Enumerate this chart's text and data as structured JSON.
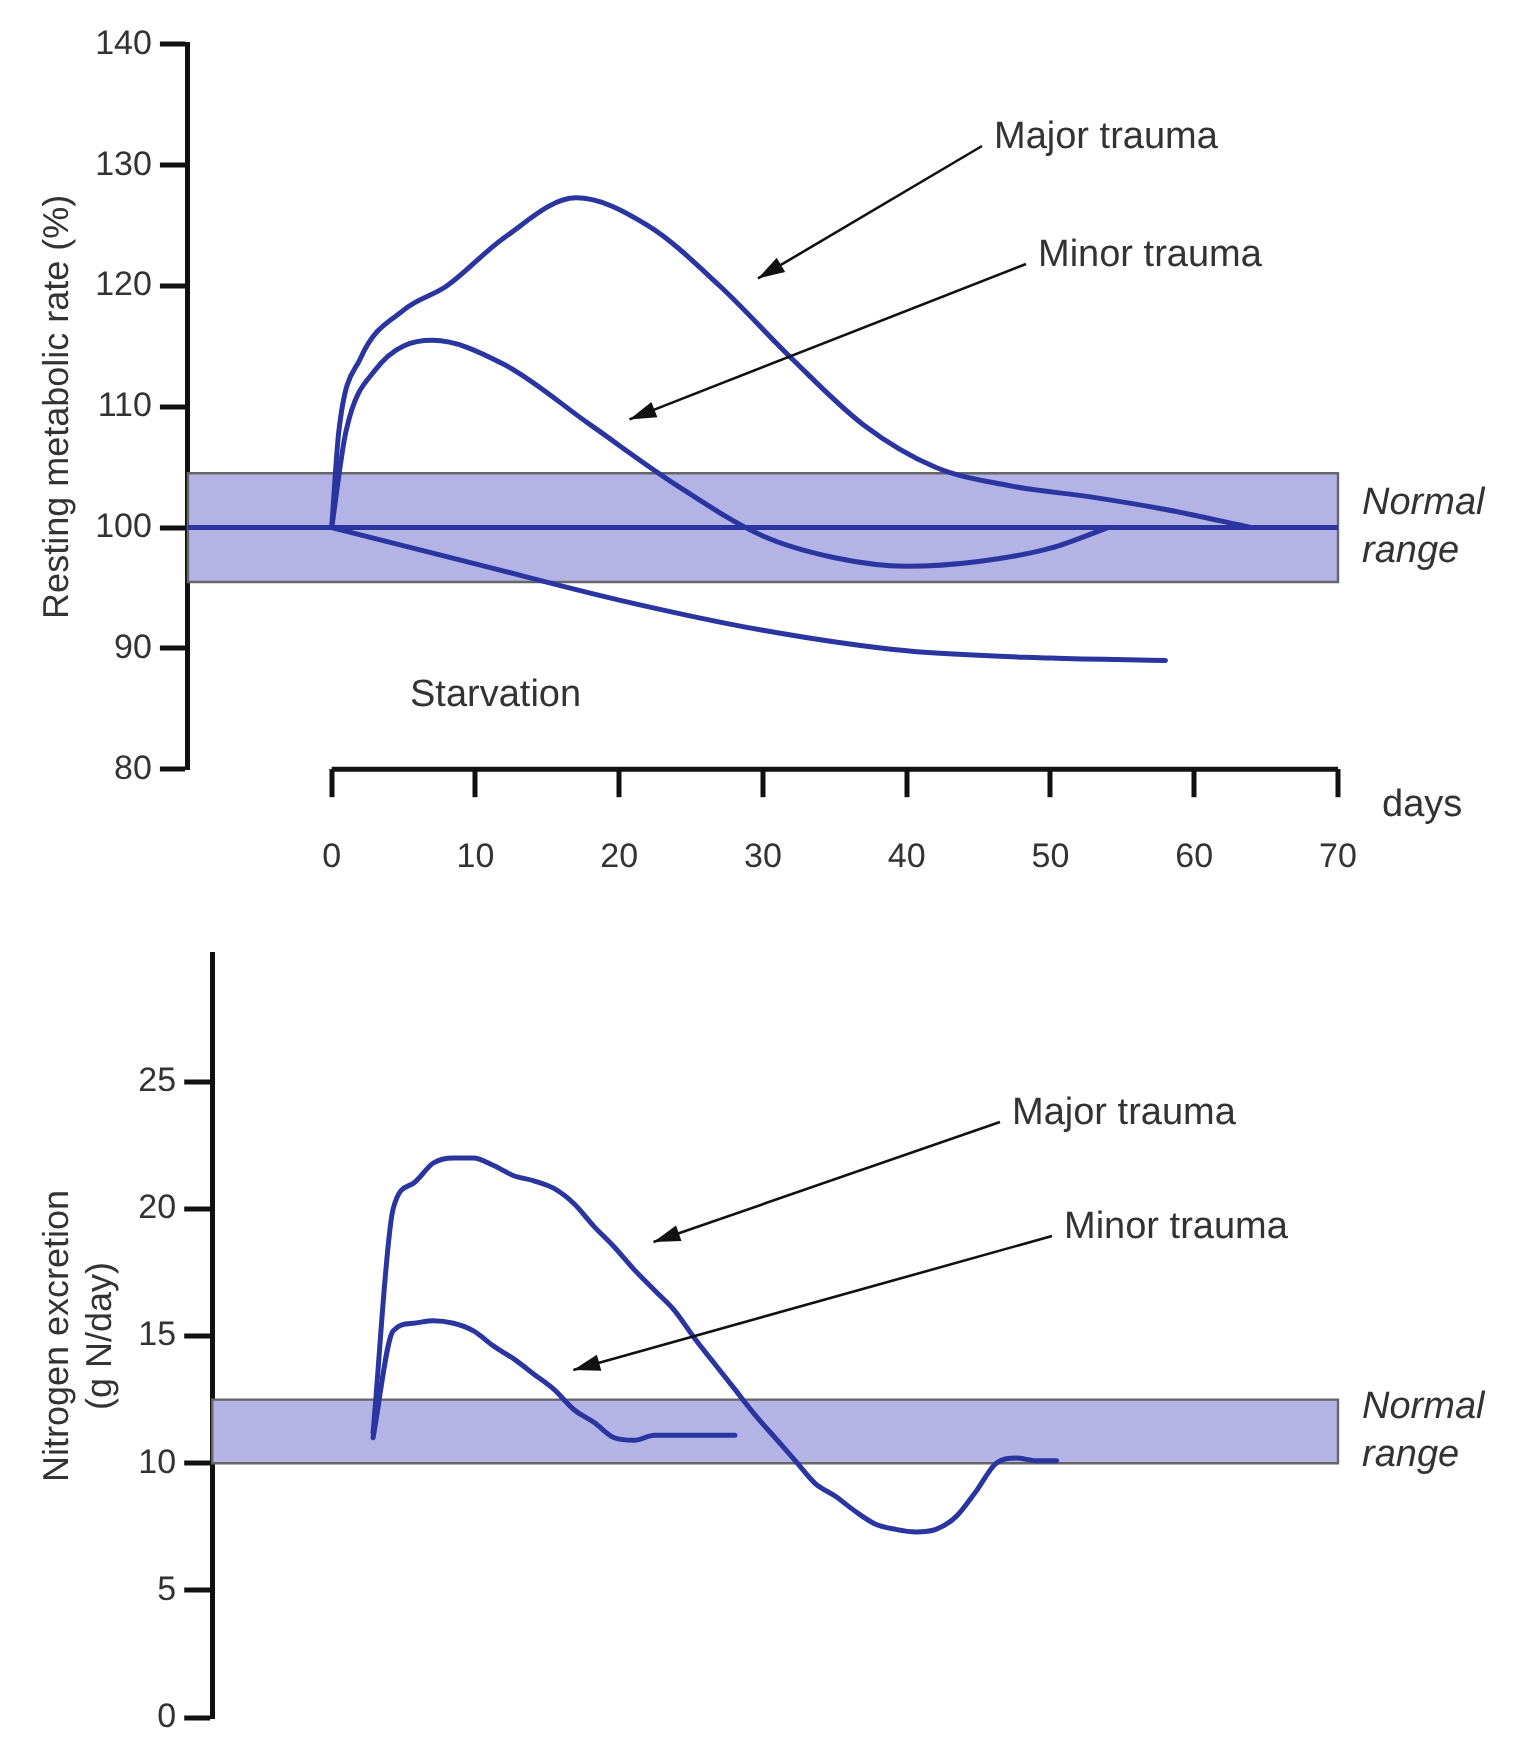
{
  "chart_data": [
    {
      "type": "line",
      "ylabel": "Resting metabolic rate (%)",
      "xlabel": "days",
      "xlim": [
        -10,
        70
      ],
      "xticks": [
        0,
        10,
        20,
        30,
        40,
        50,
        60,
        70
      ],
      "ylim": [
        80,
        140
      ],
      "yticks": [
        80,
        90,
        100,
        110,
        120,
        130,
        140
      ],
      "grid": false,
      "legend": false,
      "marker": "none",
      "line_style": "solid",
      "series": [
        {
          "name": "Major trauma",
          "color": "#2b35a0",
          "x": [
            0,
            0.5,
            2,
            5,
            8,
            12,
            17,
            22,
            27,
            32,
            37,
            42,
            47,
            53,
            58,
            64
          ],
          "values": [
            100,
            108,
            114,
            118,
            120,
            124,
            127.3,
            125,
            120,
            114,
            108.5,
            105,
            103.5,
            102.5,
            101.5,
            100
          ]
        },
        {
          "name": "Minor trauma",
          "color": "#2b35a0",
          "x": [
            0,
            1,
            3,
            7,
            12,
            18,
            24,
            30,
            35,
            40,
            45,
            50,
            54
          ],
          "values": [
            100,
            108,
            113,
            115.5,
            113.5,
            108.5,
            103.5,
            99.3,
            97.5,
            96.8,
            97.2,
            98.3,
            100
          ]
        },
        {
          "name": "Starvation",
          "color": "#2b35a0",
          "x": [
            0,
            10,
            20,
            30,
            40,
            50,
            58
          ],
          "values": [
            100,
            97,
            94,
            91.5,
            89.8,
            89.2,
            89
          ]
        }
      ],
      "ref_lines": [
        {
          "axis": "y",
          "value": 100,
          "color": "#2b35a0"
        }
      ],
      "bands": [
        {
          "axis": "y",
          "from": 95.5,
          "to": 104.5,
          "label": "Normal range",
          "color": "#b3b3e6"
        }
      ]
    },
    {
      "type": "line",
      "ylabel": "Nitrogen excretion\n(g N/day)",
      "categories": [
        null,
        null,
        null,
        null,
        null,
        null,
        null,
        null,
        null,
        null,
        null,
        null,
        null,
        null,
        null,
        null,
        null,
        null,
        null,
        null,
        null,
        null,
        null,
        null,
        null,
        null,
        null,
        null,
        null,
        null,
        null,
        null,
        null,
        null,
        null,
        null,
        null,
        null,
        null,
        null,
        null,
        null,
        null,
        null,
        null,
        null,
        null,
        null,
        null,
        null,
        null,
        null,
        null,
        null,
        null,
        null,
        null
      ],
      "ylim": [
        0,
        30
      ],
      "yticks": [
        0,
        5,
        10,
        15,
        20,
        25
      ],
      "tick_labels": "y",
      "grid": false,
      "legend": false,
      "marker": "none",
      "line_style": "solid",
      "series": [
        {
          "name": "Major trauma",
          "color": "#2b35a0",
          "values": [
            null,
            null,
            null,
            null,
            null,
            null,
            null,
            null,
            11.2,
            20,
            21,
            21.8,
            22,
            22,
            21.7,
            21.3,
            21.1,
            20.8,
            20.2,
            19.3,
            18.5,
            17.6,
            16.8,
            16,
            14.9,
            13.9,
            12.9,
            11.9,
            11,
            10.1,
            9.2,
            8.7,
            8.1,
            7.6,
            7.4,
            7.3,
            7.4,
            7.9,
            8.9,
            10,
            10.2,
            10.1,
            10.1,
            null,
            null,
            null,
            null,
            null,
            null,
            null,
            null,
            null,
            null,
            null,
            null,
            null,
            null
          ]
        },
        {
          "name": "Minor trauma",
          "color": "#2b35a0",
          "values": [
            null,
            null,
            null,
            null,
            null,
            null,
            null,
            null,
            11,
            15.2,
            15.5,
            15.6,
            15.5,
            15.2,
            14.6,
            14.1,
            13.5,
            12.9,
            12.1,
            11.6,
            11,
            10.9,
            11.1,
            11.1,
            11.1,
            11.1,
            11.1,
            null,
            null,
            null,
            null,
            null,
            null,
            null,
            null,
            null,
            null,
            null,
            null,
            null,
            null,
            null,
            null,
            null,
            null,
            null,
            null,
            null,
            null,
            null,
            null,
            null,
            null,
            null,
            null,
            null,
            null
          ]
        }
      ],
      "bands": [
        {
          "axis": "y",
          "from": 10,
          "to": 12.5,
          "label": "Normal range",
          "color": "#b3b3e6"
        }
      ]
    }
  ]
}
